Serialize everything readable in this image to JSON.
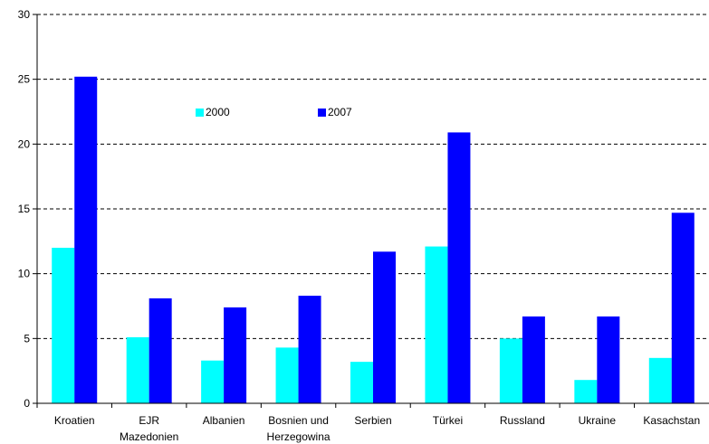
{
  "chart_data": {
    "type": "bar",
    "categories": [
      [
        "Kroatien"
      ],
      [
        "EJR",
        "Mazedonien"
      ],
      [
        "Albanien"
      ],
      [
        "Bosnien und",
        "Herzegowina"
      ],
      [
        "Serbien"
      ],
      [
        "Türkei"
      ],
      [
        "Russland"
      ],
      [
        "Ukraine"
      ],
      [
        "Kasachstan"
      ]
    ],
    "series": [
      {
        "name": "2000",
        "color": "#00ffff",
        "values": [
          12.0,
          5.1,
          3.3,
          4.3,
          3.2,
          12.1,
          5.0,
          1.8,
          3.5
        ]
      },
      {
        "name": "2007",
        "color": "#0000ff",
        "values": [
          25.2,
          8.1,
          7.4,
          8.3,
          11.7,
          20.9,
          6.7,
          6.7,
          14.7
        ]
      }
    ],
    "ylim": [
      0,
      30
    ],
    "yticks": [
      "0",
      "5",
      "10",
      "15",
      "20",
      "25",
      "30"
    ],
    "grid": true,
    "legend_position": "top-center"
  }
}
